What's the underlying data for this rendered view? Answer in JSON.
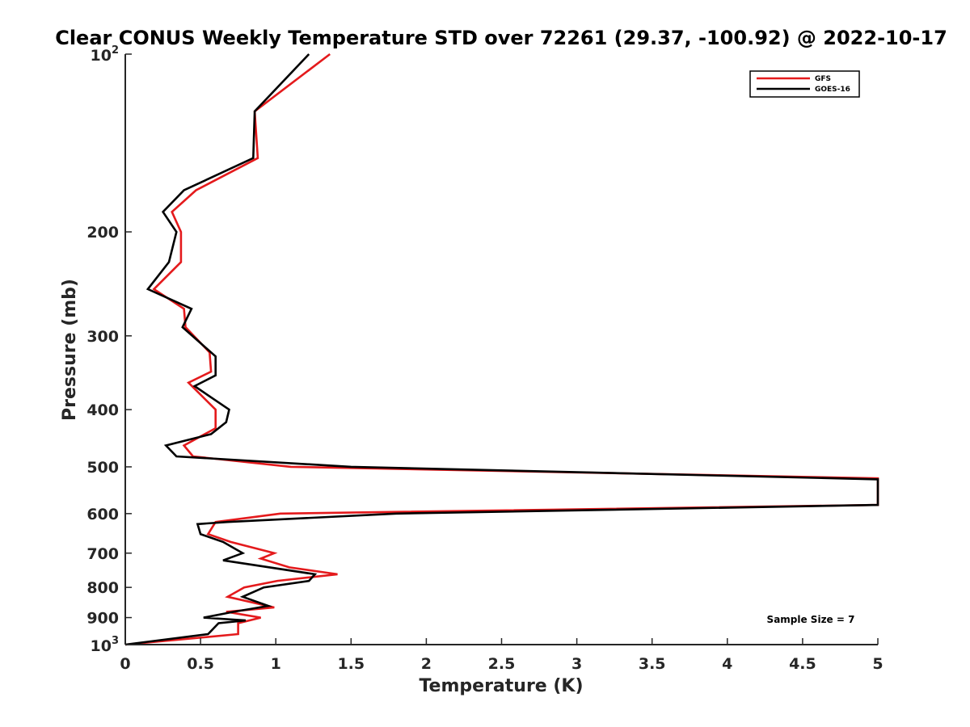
{
  "chart_data": {
    "type": "line",
    "title": "Clear CONUS Weekly Temperature STD over 72261 (29.37, -100.92) @ 2022-10-17",
    "xlabel": "Temperature (K)",
    "ylabel": "Pressure (mb)",
    "xlim": [
      0,
      5
    ],
    "ylim": [
      1000,
      100
    ],
    "yscale": "log",
    "yreverse": true,
    "x_ticks": [
      "0",
      "0.5",
      "1",
      "1.5",
      "2",
      "2.5",
      "3",
      "3.5",
      "4",
      "4.5",
      "5"
    ],
    "y_ticks": [
      {
        "value": 100,
        "base": "10",
        "exp": "2"
      },
      {
        "value": 200,
        "label": "200"
      },
      {
        "value": 300,
        "label": "300"
      },
      {
        "value": 400,
        "label": "400"
      },
      {
        "value": 500,
        "label": "500"
      },
      {
        "value": 600,
        "label": "600"
      },
      {
        "value": 700,
        "label": "700"
      },
      {
        "value": 800,
        "label": "800"
      },
      {
        "value": 900,
        "label": "900"
      },
      {
        "value": 1000,
        "base": "10",
        "exp": "3"
      }
    ],
    "grid": false,
    "legend_position": "top-right",
    "annotation": "Sample Size = 7",
    "series": [
      {
        "name": "GFS",
        "color": "#e41a1c",
        "points": [
          [
            1.36,
            100
          ],
          [
            0.86,
            125
          ],
          [
            0.88,
            150
          ],
          [
            0.47,
            170
          ],
          [
            0.31,
            185
          ],
          [
            0.37,
            200
          ],
          [
            0.37,
            225
          ],
          [
            0.19,
            250
          ],
          [
            0.39,
            270
          ],
          [
            0.4,
            290
          ],
          [
            0.56,
            320
          ],
          [
            0.57,
            345
          ],
          [
            0.42,
            360
          ],
          [
            0.6,
            400
          ],
          [
            0.6,
            430
          ],
          [
            0.39,
            460
          ],
          [
            0.45,
            480
          ],
          [
            1.1,
            500
          ],
          [
            5.0,
            523
          ],
          [
            5.0,
            580
          ],
          [
            1.03,
            600
          ],
          [
            0.6,
            620
          ],
          [
            0.55,
            650
          ],
          [
            0.7,
            670
          ],
          [
            0.99,
            700
          ],
          [
            0.9,
            715
          ],
          [
            1.09,
            740
          ],
          [
            1.41,
            760
          ],
          [
            1.01,
            780
          ],
          [
            0.79,
            800
          ],
          [
            0.68,
            830
          ],
          [
            0.99,
            865
          ],
          [
            0.67,
            880
          ],
          [
            0.9,
            900
          ],
          [
            0.75,
            920
          ],
          [
            0.75,
            960
          ],
          [
            0.0,
            1000
          ]
        ]
      },
      {
        "name": "GOES-16",
        "color": "#000000",
        "points": [
          [
            1.22,
            100
          ],
          [
            0.86,
            125
          ],
          [
            0.85,
            150
          ],
          [
            0.39,
            170
          ],
          [
            0.25,
            185
          ],
          [
            0.34,
            200
          ],
          [
            0.29,
            225
          ],
          [
            0.15,
            250
          ],
          [
            0.44,
            270
          ],
          [
            0.38,
            290
          ],
          [
            0.6,
            325
          ],
          [
            0.6,
            350
          ],
          [
            0.46,
            365
          ],
          [
            0.69,
            400
          ],
          [
            0.67,
            420
          ],
          [
            0.57,
            440
          ],
          [
            0.27,
            460
          ],
          [
            0.34,
            480
          ],
          [
            1.5,
            500
          ],
          [
            5.0,
            525
          ],
          [
            5.0,
            580
          ],
          [
            1.8,
            600
          ],
          [
            0.68,
            620
          ],
          [
            0.48,
            625
          ],
          [
            0.5,
            650
          ],
          [
            0.65,
            670
          ],
          [
            0.78,
            700
          ],
          [
            0.65,
            720
          ],
          [
            1.26,
            760
          ],
          [
            1.22,
            780
          ],
          [
            0.92,
            800
          ],
          [
            0.78,
            830
          ],
          [
            0.95,
            860
          ],
          [
            0.72,
            880
          ],
          [
            0.52,
            900
          ],
          [
            0.8,
            910
          ],
          [
            0.62,
            920
          ],
          [
            0.55,
            960
          ],
          [
            0.0,
            1000
          ]
        ]
      }
    ]
  }
}
